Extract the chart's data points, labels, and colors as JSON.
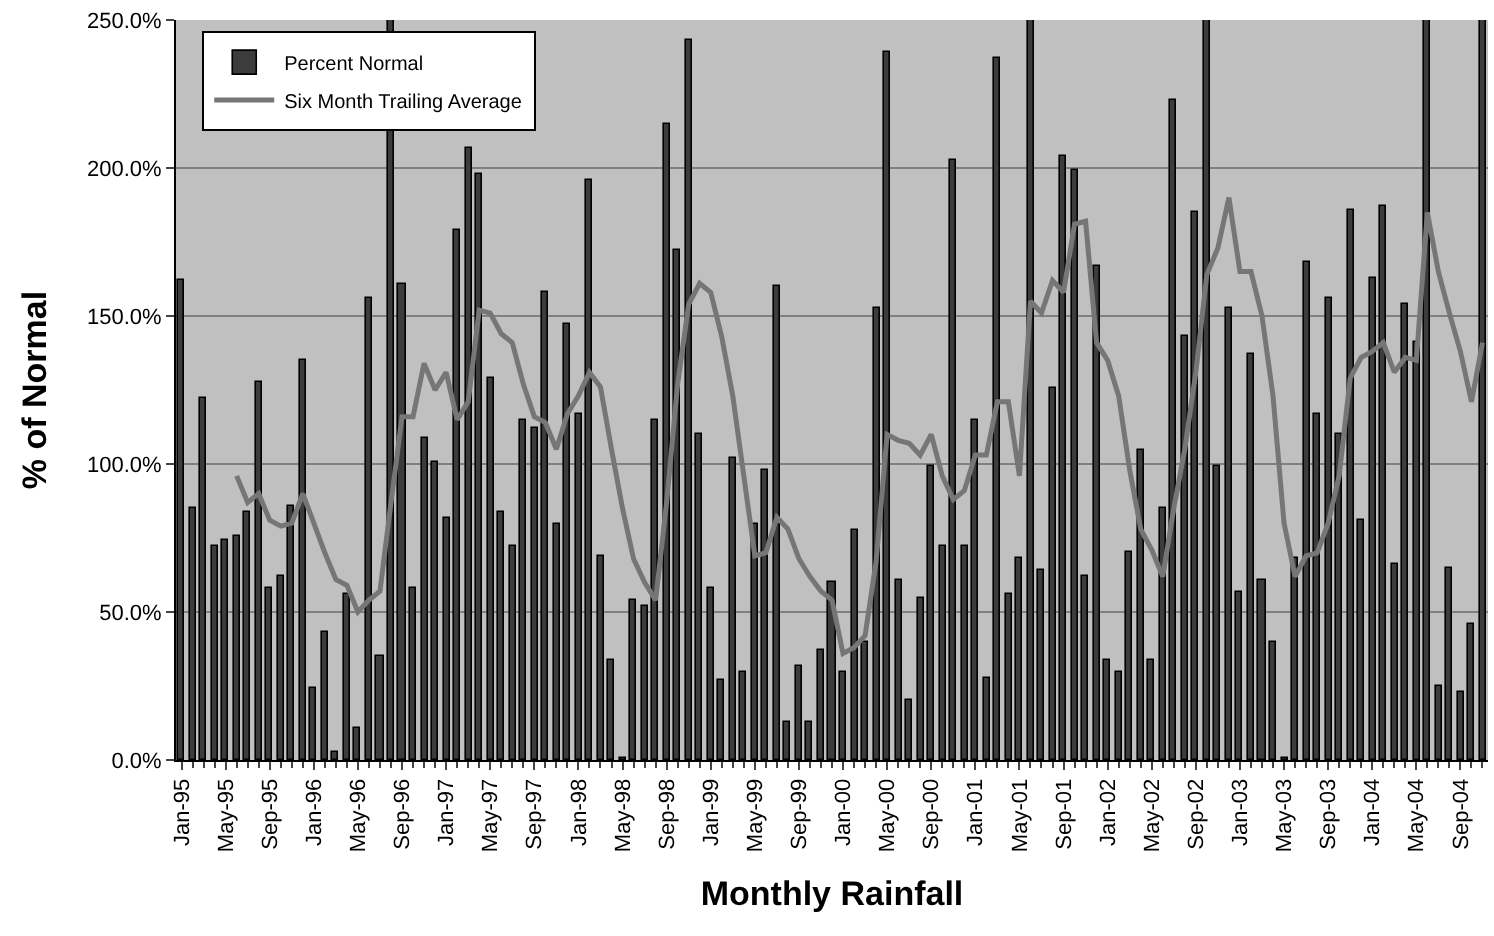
{
  "chart_data": {
    "type": "bar",
    "xlabel": "Monthly Rainfall",
    "ylabel": "% of Normal",
    "categories": [
      "Jan-95",
      null,
      null,
      null,
      "May-95",
      null,
      null,
      null,
      "Sep-95",
      null,
      null,
      null,
      "Jan-96",
      null,
      null,
      null,
      "May-96",
      null,
      null,
      null,
      "Sep-96",
      null,
      null,
      null,
      "Jan-97",
      null,
      null,
      null,
      "May-97",
      null,
      null,
      null,
      "Sep-97",
      null,
      null,
      null,
      "Jan-98",
      null,
      null,
      null,
      "May-98",
      null,
      null,
      null,
      "Sep-98",
      null,
      null,
      null,
      "Jan-99",
      null,
      null,
      null,
      "May-99",
      null,
      null,
      null,
      "Sep-99",
      null,
      null,
      null,
      "Jan-00",
      null,
      null,
      null,
      "May-00",
      null,
      null,
      null,
      "Sep-00",
      null,
      null,
      null,
      "Jan-01",
      null,
      null,
      null,
      "May-01",
      null,
      null,
      null,
      "Sep-01",
      null,
      null,
      null,
      "Jan-02",
      null,
      null,
      null,
      "May-02",
      null,
      null,
      null,
      "Sep-02",
      null,
      null,
      null,
      "Jan-03",
      null,
      null,
      null,
      "May-03",
      null,
      null,
      null,
      "Sep-03",
      null,
      null,
      null,
      "Jan-04",
      null,
      null,
      null,
      "May-04",
      null,
      null,
      null,
      "Sep-04",
      null,
      null
    ],
    "series": [
      {
        "name": "Percent Normal",
        "color": "#3c3c3c",
        "values": [
          162,
          85,
          122,
          72,
          74,
          76,
          84,
          128,
          58,
          62,
          86,
          135,
          24,
          43,
          3,
          56,
          11,
          156,
          35,
          250,
          161,
          58,
          109,
          101,
          82,
          179,
          207,
          198,
          129,
          84,
          72,
          115,
          112,
          158,
          80,
          147,
          117,
          196,
          69,
          34,
          0.5,
          54,
          52,
          115,
          215,
          172,
          243,
          110,
          58,
          27,
          102,
          30,
          80,
          98,
          160,
          13,
          32,
          13,
          37,
          60,
          30,
          78,
          40,
          153,
          239,
          61,
          20,
          55,
          99,
          72,
          203,
          72,
          115,
          28,
          237,
          56,
          68,
          250,
          64,
          126,
          204,
          199,
          62,
          167,
          34,
          30,
          70,
          105,
          34,
          85,
          223,
          143,
          185,
          250,
          99,
          153,
          57,
          137,
          61,
          40,
          0.5,
          68,
          168,
          117,
          156,
          110,
          186,
          81,
          163,
          187,
          66,
          154,
          141,
          250,
          25,
          65,
          23,
          46,
          250
        ]
      },
      {
        "name": "Six Month Trailing Average",
        "type": "line",
        "color": "#767676",
        "values": [
          null,
          null,
          null,
          null,
          null,
          96,
          87,
          90,
          81,
          79,
          80,
          90,
          80,
          70,
          61,
          59,
          50,
          54,
          57,
          87,
          116,
          116,
          134,
          125,
          131,
          115,
          121,
          152,
          151,
          144,
          141,
          127,
          116,
          114,
          105,
          117,
          123,
          131,
          126,
          105,
          85,
          68,
          60,
          54,
          87,
          127,
          154,
          161,
          158,
          143,
          123,
          96,
          69,
          70,
          82,
          78,
          68,
          62,
          57,
          54,
          36,
          38,
          42,
          67,
          110,
          108,
          107,
          103,
          110,
          96,
          88,
          91,
          103,
          103,
          121,
          121,
          96,
          155,
          151,
          162,
          158,
          181,
          182,
          141,
          135,
          123,
          98,
          78,
          71,
          62,
          85,
          105,
          131,
          164,
          173,
          190,
          165,
          165,
          150,
          123,
          80,
          62,
          69,
          70,
          80,
          96,
          129,
          136,
          138,
          141,
          131,
          136,
          135,
          185,
          165,
          151,
          138,
          121,
          141
        ]
      }
    ],
    "ylim": [
      0,
      250
    ],
    "yticks": [
      {
        "value": 0,
        "label": "0.0%"
      },
      {
        "value": 50,
        "label": "50.0%"
      },
      {
        "value": 100,
        "label": "100.0%"
      },
      {
        "value": 150,
        "label": "150.0%"
      },
      {
        "value": 200,
        "label": "200.0%"
      },
      {
        "value": 250,
        "label": "250.0%"
      }
    ],
    "grid": "y",
    "legend": "top left",
    "marker": "none",
    "line_style": "solid"
  }
}
